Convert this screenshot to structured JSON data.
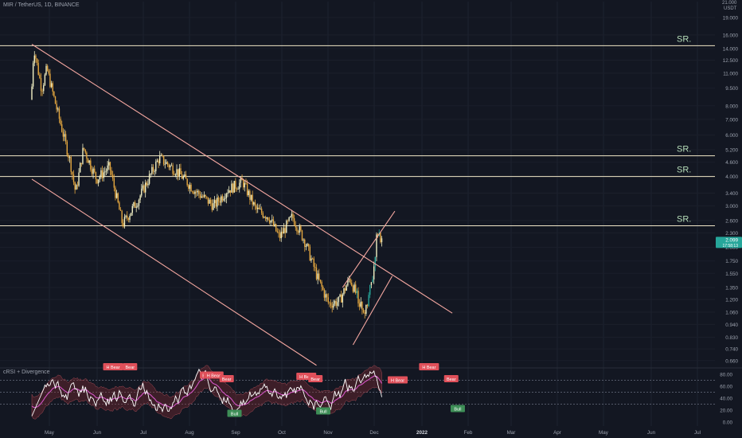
{
  "header": {
    "symbol": "MIR / TetherUS, 1D, BINANCE",
    "indicator": "cRSI + Divergence",
    "quote_currency": "USDT",
    "top_value": "21.000"
  },
  "colors": {
    "background": "#131722",
    "up": "#f2f0c4",
    "down": "#e3a63f",
    "up_alt": "#26a69a",
    "channel": "#f4a7a0",
    "sr_line": "#f2e8c8",
    "sr_label": "#b6ddb8",
    "crsi": "#ffffff",
    "signal": "#d354c5",
    "band": "#8b2a35",
    "price_badge": "#26a69a"
  },
  "price_label": {
    "value": "2.099",
    "sub": "17:58:13"
  },
  "chart_data": {
    "type": "candlestick",
    "scale": "log",
    "ylim": [
      0.6,
      21
    ],
    "x_ticks": [
      "May",
      "Jun",
      "Jul",
      "Aug",
      "Sep",
      "Oct",
      "Nov",
      "Dec",
      "2022",
      "Feb",
      "Mar",
      "Apr",
      "May",
      "Jun",
      "Jul"
    ],
    "y_ticks": [
      "19.000",
      "16.000",
      "14.000",
      "12.500",
      "11.000",
      "9.500",
      "8.000",
      "7.000",
      "6.000",
      "5.200",
      "4.600",
      "4.000",
      "3.400",
      "3.000",
      "2.600",
      "2.300",
      "2.000",
      "1.750",
      "1.550",
      "1.350",
      "1.200",
      "1.060",
      "0.940",
      "0.830",
      "0.740",
      "0.660"
    ],
    "y_tick_values": [
      19,
      16,
      14,
      12.5,
      11,
      9.5,
      8,
      7,
      6,
      5.2,
      4.6,
      4,
      3.4,
      3,
      2.6,
      2.3,
      2,
      1.75,
      1.55,
      1.35,
      1.2,
      1.06,
      0.94,
      0.83,
      0.74,
      0.66
    ],
    "sr_levels": [
      {
        "label": "SR.",
        "value": 14.4
      },
      {
        "label": "SR.",
        "value": 4.9
      },
      {
        "label": "SR.",
        "value": 4.0
      },
      {
        "label": "SR.",
        "value": 2.47
      }
    ],
    "price_anchors": [
      {
        "day": 0,
        "price": 8.5
      },
      {
        "day": 2,
        "price": 14.2
      },
      {
        "day": 8,
        "price": 9.4
      },
      {
        "day": 12,
        "price": 11.5
      },
      {
        "day": 18,
        "price": 8.4
      },
      {
        "day": 30,
        "price": 4.6
      },
      {
        "day": 34,
        "price": 3.4
      },
      {
        "day": 40,
        "price": 5.3
      },
      {
        "day": 50,
        "price": 3.9
      },
      {
        "day": 60,
        "price": 4.4
      },
      {
        "day": 70,
        "price": 2.5
      },
      {
        "day": 82,
        "price": 3.2
      },
      {
        "day": 98,
        "price": 4.8
      },
      {
        "day": 112,
        "price": 4.2
      },
      {
        "day": 125,
        "price": 3.5
      },
      {
        "day": 140,
        "price": 3.0
      },
      {
        "day": 150,
        "price": 3.5
      },
      {
        "day": 162,
        "price": 3.8
      },
      {
        "day": 172,
        "price": 2.9
      },
      {
        "day": 182,
        "price": 2.7
      },
      {
        "day": 190,
        "price": 2.2
      },
      {
        "day": 200,
        "price": 2.7
      },
      {
        "day": 210,
        "price": 2.1
      },
      {
        "day": 220,
        "price": 1.45
      },
      {
        "day": 228,
        "price": 1.15
      },
      {
        "day": 236,
        "price": 1.18
      },
      {
        "day": 244,
        "price": 1.48
      },
      {
        "day": 250,
        "price": 1.22
      },
      {
        "day": 256,
        "price": 1.05
      },
      {
        "day": 262,
        "price": 1.55
      },
      {
        "day": 265,
        "price": 2.35
      },
      {
        "day": 268,
        "price": 2.1
      }
    ],
    "trendlines": [
      {
        "from": {
          "day": 0,
          "price": 14.6
        },
        "to": {
          "day": 322,
          "price": 1.05
        }
      },
      {
        "from": {
          "day": 0,
          "price": 3.9
        },
        "to": {
          "day": 218,
          "price": 0.63
        }
      },
      {
        "from": {
          "day": 246,
          "price": 0.77
        },
        "to": {
          "day": 276,
          "price": 1.51
        }
      },
      {
        "from": {
          "day": 238,
          "price": 1.35
        },
        "to": {
          "day": 278,
          "price": 2.85
        }
      }
    ],
    "indicator": {
      "name": "cRSI + Divergence",
      "y_ticks": [
        "80.00",
        "60.00",
        "40.00",
        "20.00",
        "0.00"
      ],
      "y_tick_values": [
        80,
        60,
        40,
        20,
        0
      ],
      "levels": [
        70,
        50,
        30
      ],
      "labels": [
        {
          "text": "H Bear",
          "value": 92
        },
        {
          "text": "Bear",
          "value": 92
        },
        {
          "text": "Bear",
          "value": 78
        },
        {
          "text": "H Bear",
          "value": 78
        },
        {
          "text": "Bear",
          "value": 72
        },
        {
          "text": "Bull",
          "value": 14
        },
        {
          "text": "H Bear",
          "value": 76
        },
        {
          "text": "Bear",
          "value": 72
        },
        {
          "text": "Bull",
          "value": 18
        },
        {
          "text": "H Bear",
          "value": 70
        },
        {
          "text": "H Bear",
          "value": 92
        },
        {
          "text": "Bear",
          "value": 72
        },
        {
          "text": "Bull",
          "value": 22
        }
      ]
    }
  }
}
